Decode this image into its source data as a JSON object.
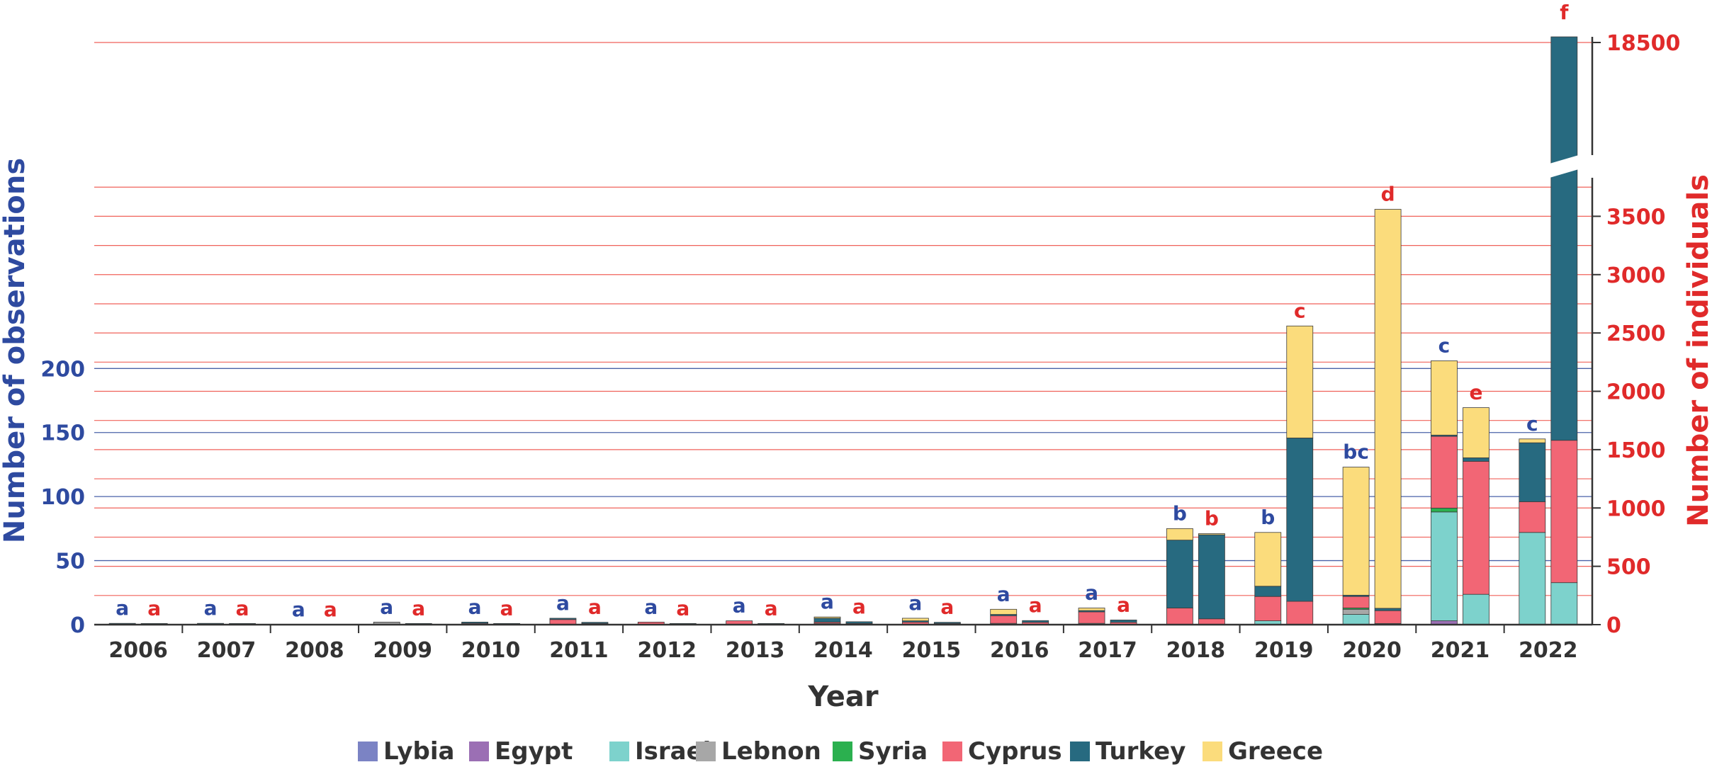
{
  "chart_data": {
    "type": "bar",
    "subtype": "stacked-bar-dual-axis",
    "categories": [
      "2006",
      "2007",
      "2008",
      "2009",
      "2010",
      "2011",
      "2012",
      "2013",
      "2014",
      "2015",
      "2016",
      "2017",
      "2018",
      "2019",
      "2020",
      "2021",
      "2022"
    ],
    "xlabel": "Year",
    "ylabel_left": "Number of observations",
    "ylabel_right": "Number of individuals",
    "left_axis": {
      "ylim": [
        0,
        228
      ],
      "ticks": [
        0,
        50,
        100,
        150,
        200
      ],
      "color": "#2e4aa0"
    },
    "right_axis": {
      "broken": true,
      "ylim_lower": [
        0,
        3900
      ],
      "ticks": [
        0,
        500,
        1000,
        1500,
        2000,
        2500,
        3000,
        3500
      ],
      "break_tick": 18500,
      "color": "#e02a2a"
    },
    "legend": {
      "position": "bottom"
    },
    "series_names": [
      "Lybia",
      "Egypt",
      "Israel",
      "Lebnon",
      "Syria",
      "Cyprus",
      "Turkey",
      "Greece"
    ],
    "series_colors": [
      "#7b83c4",
      "#9b6fb4",
      "#7dd2cc",
      "#a7a7a7",
      "#2bb04f",
      "#f26675",
      "#276a80",
      "#fbdc7c"
    ],
    "observations": [
      {
        "year": "2006",
        "letter": "a",
        "values": [
          0,
          0,
          0,
          0,
          0,
          0,
          1,
          0
        ]
      },
      {
        "year": "2007",
        "letter": "a",
        "values": [
          0,
          0,
          0,
          0,
          0,
          0,
          1,
          0
        ]
      },
      {
        "year": "2008",
        "letter": "a",
        "values": [
          0,
          0,
          0,
          0,
          0,
          0,
          0,
          0
        ]
      },
      {
        "year": "2009",
        "letter": "a",
        "values": [
          0,
          0,
          0,
          2,
          0,
          0,
          0,
          0
        ]
      },
      {
        "year": "2010",
        "letter": "a",
        "values": [
          0,
          0,
          0,
          0,
          0,
          1,
          1,
          0
        ]
      },
      {
        "year": "2011",
        "letter": "a",
        "values": [
          0,
          0,
          0,
          0,
          0,
          4,
          1,
          0
        ]
      },
      {
        "year": "2012",
        "letter": "a",
        "values": [
          0,
          0,
          0,
          0,
          0,
          2,
          0,
          0
        ]
      },
      {
        "year": "2013",
        "letter": "a",
        "values": [
          0,
          0,
          0,
          0,
          0,
          3,
          0,
          0
        ]
      },
      {
        "year": "2014",
        "letter": "a",
        "values": [
          0,
          0,
          0,
          1,
          0,
          1,
          3,
          1
        ]
      },
      {
        "year": "2015",
        "letter": "a",
        "values": [
          0,
          0,
          0,
          0,
          0,
          2,
          1,
          2
        ]
      },
      {
        "year": "2016",
        "letter": "a",
        "values": [
          0,
          0,
          0,
          1,
          0,
          6,
          1,
          4
        ]
      },
      {
        "year": "2017",
        "letter": "a",
        "values": [
          0,
          0,
          1,
          0,
          0,
          9,
          1,
          2
        ]
      },
      {
        "year": "2018",
        "letter": "b",
        "values": [
          0,
          0,
          0,
          0,
          0,
          13,
          53,
          9
        ]
      },
      {
        "year": "2019",
        "letter": "b",
        "values": [
          0,
          0,
          3,
          0,
          0,
          19,
          8,
          42
        ]
      },
      {
        "year": "2020",
        "letter": "bc",
        "values": [
          0,
          0,
          8,
          4,
          1,
          9,
          1,
          100
        ]
      },
      {
        "year": "2021",
        "letter": "c",
        "values": [
          0,
          3,
          85,
          0,
          3,
          56,
          1,
          58
        ]
      },
      {
        "year": "2022",
        "letter": "c",
        "values": [
          0,
          0,
          72,
          0,
          0,
          24,
          46,
          3
        ]
      }
    ],
    "individuals": [
      {
        "year": "2006",
        "letter": "a",
        "values": [
          0,
          0,
          0,
          0,
          0,
          0,
          10,
          0
        ]
      },
      {
        "year": "2007",
        "letter": "a",
        "values": [
          0,
          0,
          0,
          0,
          0,
          0,
          10,
          0
        ]
      },
      {
        "year": "2008",
        "letter": "a",
        "values": [
          0,
          0,
          0,
          0,
          0,
          0,
          0,
          0
        ]
      },
      {
        "year": "2009",
        "letter": "a",
        "values": [
          0,
          0,
          0,
          0,
          0,
          0,
          10,
          0
        ]
      },
      {
        "year": "2010",
        "letter": "a",
        "values": [
          0,
          0,
          0,
          0,
          0,
          0,
          10,
          0
        ]
      },
      {
        "year": "2011",
        "letter": "a",
        "values": [
          0,
          0,
          0,
          0,
          0,
          10,
          10,
          0
        ]
      },
      {
        "year": "2012",
        "letter": "a",
        "values": [
          0,
          0,
          0,
          0,
          0,
          0,
          10,
          0
        ]
      },
      {
        "year": "2013",
        "letter": "a",
        "values": [
          0,
          0,
          0,
          0,
          0,
          0,
          10,
          0
        ]
      },
      {
        "year": "2014",
        "letter": "a",
        "values": [
          0,
          0,
          0,
          0,
          0,
          10,
          15,
          0
        ]
      },
      {
        "year": "2015",
        "letter": "a",
        "values": [
          0,
          0,
          0,
          0,
          0,
          10,
          10,
          0
        ]
      },
      {
        "year": "2016",
        "letter": "a",
        "values": [
          0,
          0,
          0,
          0,
          0,
          20,
          15,
          0
        ]
      },
      {
        "year": "2017",
        "letter": "a",
        "values": [
          0,
          0,
          0,
          0,
          0,
          20,
          20,
          0
        ]
      },
      {
        "year": "2018",
        "letter": "b",
        "values": [
          0,
          0,
          0,
          0,
          0,
          50,
          720,
          10
        ]
      },
      {
        "year": "2019",
        "letter": "c",
        "values": [
          0,
          0,
          0,
          0,
          0,
          200,
          1400,
          960
        ]
      },
      {
        "year": "2020",
        "letter": "d",
        "values": [
          0,
          0,
          10,
          0,
          0,
          110,
          20,
          3420
        ]
      },
      {
        "year": "2021",
        "letter": "e",
        "values": [
          0,
          0,
          260,
          0,
          0,
          1140,
          30,
          430
        ]
      },
      {
        "year": "2022",
        "letter": "f",
        "values": [
          0,
          0,
          360,
          0,
          0,
          1220,
          18840,
          0
        ]
      }
    ]
  }
}
